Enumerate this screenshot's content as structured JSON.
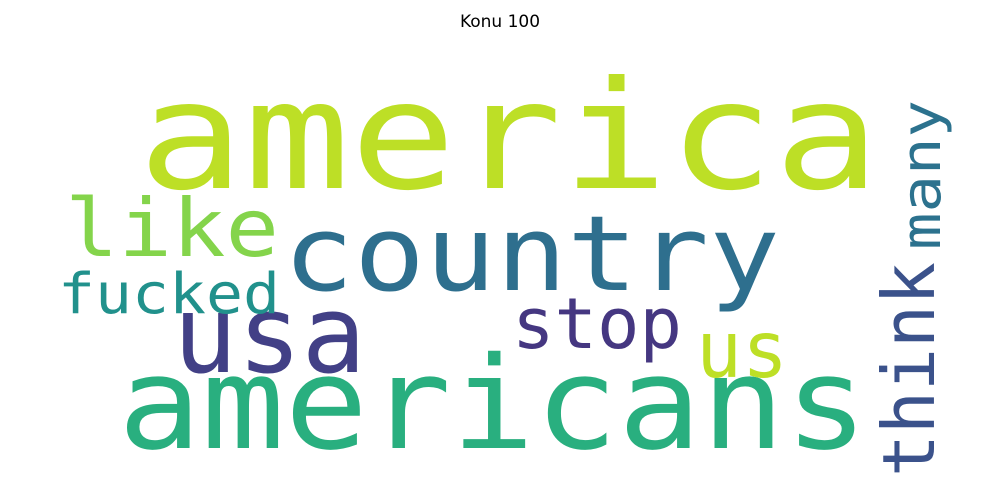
{
  "title": "Konu 100",
  "words": [
    {
      "text": "america",
      "color": "#bddf26",
      "orientation": "horizontal"
    },
    {
      "text": "americans",
      "color": "#29af7f",
      "orientation": "horizontal"
    },
    {
      "text": "country",
      "color": "#2e6f8e",
      "orientation": "horizontal"
    },
    {
      "text": "usa",
      "color": "#424086",
      "orientation": "horizontal"
    },
    {
      "text": "like",
      "color": "#84d44b",
      "orientation": "horizontal"
    },
    {
      "text": "fucked",
      "color": "#21918c",
      "orientation": "horizontal"
    },
    {
      "text": "stop",
      "color": "#453781",
      "orientation": "horizontal"
    },
    {
      "text": "us",
      "color": "#bddf26",
      "orientation": "horizontal"
    },
    {
      "text": "think",
      "color": "#3b528b",
      "orientation": "vertical"
    },
    {
      "text": "many",
      "color": "#2c728e",
      "orientation": "vertical"
    }
  ]
}
